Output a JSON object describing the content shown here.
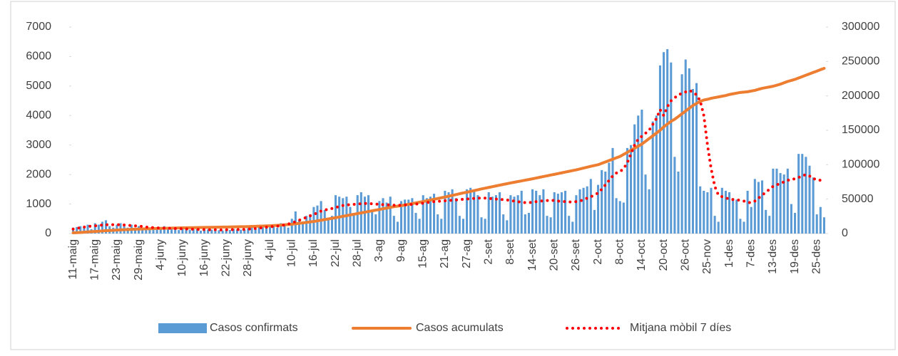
{
  "chart_data": {
    "type": "combo",
    "categories": [
      "11-maig",
      null,
      null,
      null,
      null,
      null,
      "17-maig",
      null,
      null,
      null,
      null,
      null,
      "23-maig",
      null,
      null,
      null,
      null,
      null,
      "29-maig",
      null,
      null,
      null,
      null,
      null,
      "4-juny",
      null,
      null,
      null,
      null,
      null,
      "10-juny",
      null,
      null,
      null,
      null,
      null,
      "16-juny",
      null,
      null,
      null,
      null,
      null,
      "22-juny",
      null,
      null,
      null,
      null,
      null,
      "28-juny",
      null,
      null,
      null,
      null,
      null,
      "4-jul",
      null,
      null,
      null,
      null,
      null,
      "10-jul",
      null,
      null,
      null,
      null,
      null,
      "16-jul",
      null,
      null,
      null,
      null,
      null,
      "22-jul",
      null,
      null,
      null,
      null,
      null,
      "28-jul",
      null,
      null,
      null,
      null,
      null,
      "3-ag",
      null,
      null,
      null,
      null,
      null,
      "9-ag",
      null,
      null,
      null,
      null,
      null,
      "15-ag",
      null,
      null,
      null,
      null,
      null,
      "21-ag",
      null,
      null,
      null,
      null,
      null,
      "27-ag",
      null,
      null,
      null,
      null,
      null,
      "2-set",
      null,
      null,
      null,
      null,
      null,
      "8-set",
      null,
      null,
      null,
      null,
      null,
      "14-set",
      null,
      null,
      null,
      null,
      null,
      "20-set",
      null,
      null,
      null,
      null,
      null,
      "26-set",
      null,
      null,
      null,
      null,
      null,
      "2-oct",
      null,
      null,
      null,
      null,
      null,
      "8-oct",
      null,
      null,
      null,
      null,
      null,
      "14-oct",
      null,
      null,
      null,
      null,
      null,
      "20-oct",
      null,
      null,
      null,
      null,
      null,
      "26-oct",
      null,
      null,
      null,
      null,
      null,
      "25-nov",
      null,
      null,
      null,
      null,
      null,
      "1-des",
      null,
      null,
      null,
      null,
      null,
      "7-des",
      null,
      null,
      null,
      null,
      null,
      "13-des",
      null,
      null,
      null,
      null,
      null,
      "19-des",
      null,
      null,
      null,
      null,
      null,
      "25-des",
      null,
      null
    ],
    "series": [
      {
        "name": "Casos confirmats",
        "kind": "bar",
        "color": "#5b9bd5",
        "values": [
          200,
          220,
          250,
          230,
          300,
          150,
          350,
          300,
          400,
          450,
          250,
          200,
          300,
          350,
          250,
          200,
          300,
          200,
          250,
          200,
          150,
          200,
          180,
          150,
          200,
          250,
          150,
          180,
          200,
          120,
          150,
          160,
          130,
          140,
          150,
          100,
          120,
          140,
          130,
          150,
          110,
          100,
          150,
          120,
          160,
          140,
          130,
          120,
          180,
          200,
          150,
          220,
          250,
          200,
          300,
          250,
          200,
          350,
          300,
          200,
          500,
          750,
          450,
          400,
          600,
          650,
          900,
          950,
          1100,
          800,
          500,
          600,
          1300,
          1250,
          1200,
          1250,
          900,
          700,
          1300,
          1400,
          1250,
          1300,
          800,
          650,
          1100,
          1200,
          1050,
          1250,
          600,
          400,
          1100,
          1150,
          1150,
          1200,
          700,
          500,
          1300,
          1200,
          1250,
          1350,
          650,
          500,
          1450,
          1400,
          1500,
          1200,
          600,
          500,
          1500,
          1550,
          1450,
          1300,
          550,
          500,
          1400,
          1250,
          1300,
          1400,
          650,
          450,
          1300,
          1250,
          1300,
          1450,
          650,
          700,
          1500,
          1450,
          1300,
          1500,
          600,
          550,
          1400,
          1350,
          1400,
          1450,
          600,
          400,
          1300,
          1500,
          1550,
          1600,
          1850,
          800,
          1650,
          2150,
          2100,
          2400,
          2900,
          1200,
          1100,
          1050,
          2900,
          3000,
          3700,
          4000,
          4200,
          2000,
          1500,
          3800,
          4000,
          5700,
          6150,
          6250,
          5800,
          2600,
          2100,
          5400,
          5900,
          5600,
          4900,
          5100,
          1600,
          1450,
          1400,
          1550,
          600,
          400,
          1550,
          1450,
          1400,
          1200,
          1150,
          500,
          400,
          1450,
          900,
          1850,
          1750,
          1800,
          800,
          600,
          2200,
          2200,
          2050,
          2000,
          2200,
          1000,
          700,
          2700,
          2700,
          2600,
          2300,
          1900,
          650,
          900,
          550
        ]
      },
      {
        "name": "Casos acumulats",
        "kind": "line",
        "axis": "y2",
        "color": "#ed7d31",
        "values": [
          1000,
          1300,
          1600,
          2000,
          2400,
          2700,
          3000,
          3300,
          3700,
          4100,
          4400,
          4700,
          5000,
          5300,
          5600,
          5800,
          6100,
          6300,
          6500,
          6700,
          6900,
          7000,
          7200,
          7400,
          7500,
          7600,
          7800,
          7900,
          8000,
          8200,
          8300,
          8400,
          8500,
          8600,
          8700,
          8800,
          8900,
          9000,
          9100,
          9200,
          9300,
          9400,
          9500,
          9600,
          9700,
          9800,
          9900,
          10000,
          10100,
          10300,
          10500,
          10700,
          10900,
          11100,
          11300,
          11600,
          11900,
          12300,
          12700,
          13100,
          13500,
          14200,
          14800,
          15500,
          16200,
          16900,
          17500,
          18400,
          19300,
          20300,
          21200,
          22100,
          23000,
          24000,
          25000,
          26000,
          27000,
          28000,
          29000,
          30000,
          31000,
          32000,
          33000,
          34000,
          35000,
          36000,
          37000,
          38000,
          39000,
          39800,
          40500,
          41500,
          42500,
          43500,
          44500,
          45500,
          46500,
          47600,
          48700,
          49800,
          50900,
          52000,
          53000,
          54200,
          55400,
          56600,
          57800,
          59000,
          60000,
          61200,
          62400,
          63600,
          64800,
          65900,
          67000,
          68100,
          69200,
          70300,
          71400,
          72400,
          73500,
          74500,
          75500,
          76500,
          77500,
          78500,
          79500,
          80600,
          81700,
          82800,
          83900,
          85000,
          86000,
          87100,
          88200,
          89300,
          90400,
          91500,
          92500,
          93800,
          95100,
          96400,
          97700,
          98900,
          100000,
          102000,
          104000,
          106000,
          108000,
          110000,
          112000,
          115000,
          118000,
          121000,
          124000,
          127000,
          130000,
          134000,
          138000,
          142000,
          146000,
          150000,
          155000,
          159000,
          163000,
          166000,
          170000,
          174000,
          178000,
          182000,
          186000,
          189000,
          192000,
          194000,
          195000,
          196500,
          197500,
          198500,
          199500,
          200500,
          202000,
          203000,
          204000,
          205000,
          205500,
          206000,
          207000,
          208000,
          209500,
          211000,
          212000,
          213000,
          214000,
          215500,
          217000,
          219000,
          221000,
          222500,
          224000,
          226000,
          228000,
          230000,
          232000,
          234000,
          236000,
          238000,
          240000
        ]
      },
      {
        "name": "Mitjana mòbil 7 díes",
        "kind": "dots",
        "color": "#ff0000",
        "values": [
          150,
          170,
          200,
          220,
          240,
          250,
          260,
          270,
          290,
          300,
          300,
          300,
          300,
          300,
          290,
          280,
          270,
          260,
          250,
          240,
          220,
          210,
          200,
          190,
          190,
          185,
          180,
          175,
          170,
          165,
          160,
          155,
          150,
          145,
          140,
          140,
          135,
          130,
          130,
          130,
          125,
          125,
          130,
          130,
          135,
          135,
          140,
          140,
          150,
          160,
          170,
          185,
          200,
          215,
          230,
          240,
          250,
          270,
          290,
          320,
          360,
          400,
          450,
          500,
          550,
          600,
          650,
          700,
          760,
          800,
          820,
          850,
          880,
          920,
          950,
          970,
          980,
          990,
          1000,
          1010,
          1020,
          1020,
          1010,
          1000,
          990,
          980,
          975,
          970,
          960,
          960,
          960,
          970,
          980,
          990,
          1000,
          1010,
          1030,
          1050,
          1070,
          1080,
          1090,
          1100,
          1110,
          1120,
          1130,
          1140,
          1150,
          1160,
          1170,
          1180,
          1190,
          1200,
          1200,
          1200,
          1190,
          1180,
          1170,
          1160,
          1150,
          1140,
          1120,
          1100,
          1080,
          1060,
          1050,
          1050,
          1060,
          1080,
          1100,
          1110,
          1120,
          1130,
          1120,
          1100,
          1090,
          1080,
          1070,
          1070,
          1080,
          1100,
          1150,
          1200,
          1250,
          1300,
          1380,
          1500,
          1650,
          1800,
          1950,
          2050,
          2100,
          2200,
          2400,
          2700,
          3000,
          3200,
          3300,
          3400,
          3500,
          3700,
          3900,
          4200,
          4000,
          4300,
          4500,
          4600,
          4700,
          4750,
          4800,
          4850,
          4800,
          4700,
          4500,
          4000,
          3000,
          2200,
          1600,
          1300,
          1250,
          1200,
          1180,
          1150,
          1140,
          1130,
          1100,
          1050,
          1050,
          1100,
          1200,
          1300,
          1400,
          1500,
          1600,
          1650,
          1700,
          1750,
          1800,
          1850,
          1850,
          1900,
          1950,
          2000,
          1950,
          1850,
          1850,
          1800,
          1800
        ]
      }
    ],
    "ylim": [
      0,
      7000
    ],
    "yticks": [
      0,
      1000,
      2000,
      3000,
      4000,
      5000,
      6000,
      7000
    ],
    "y2lim": [
      0,
      300000
    ],
    "y2ticks": [
      0,
      50000,
      100000,
      150000,
      200000,
      250000,
      300000
    ],
    "legend": "bottom"
  }
}
